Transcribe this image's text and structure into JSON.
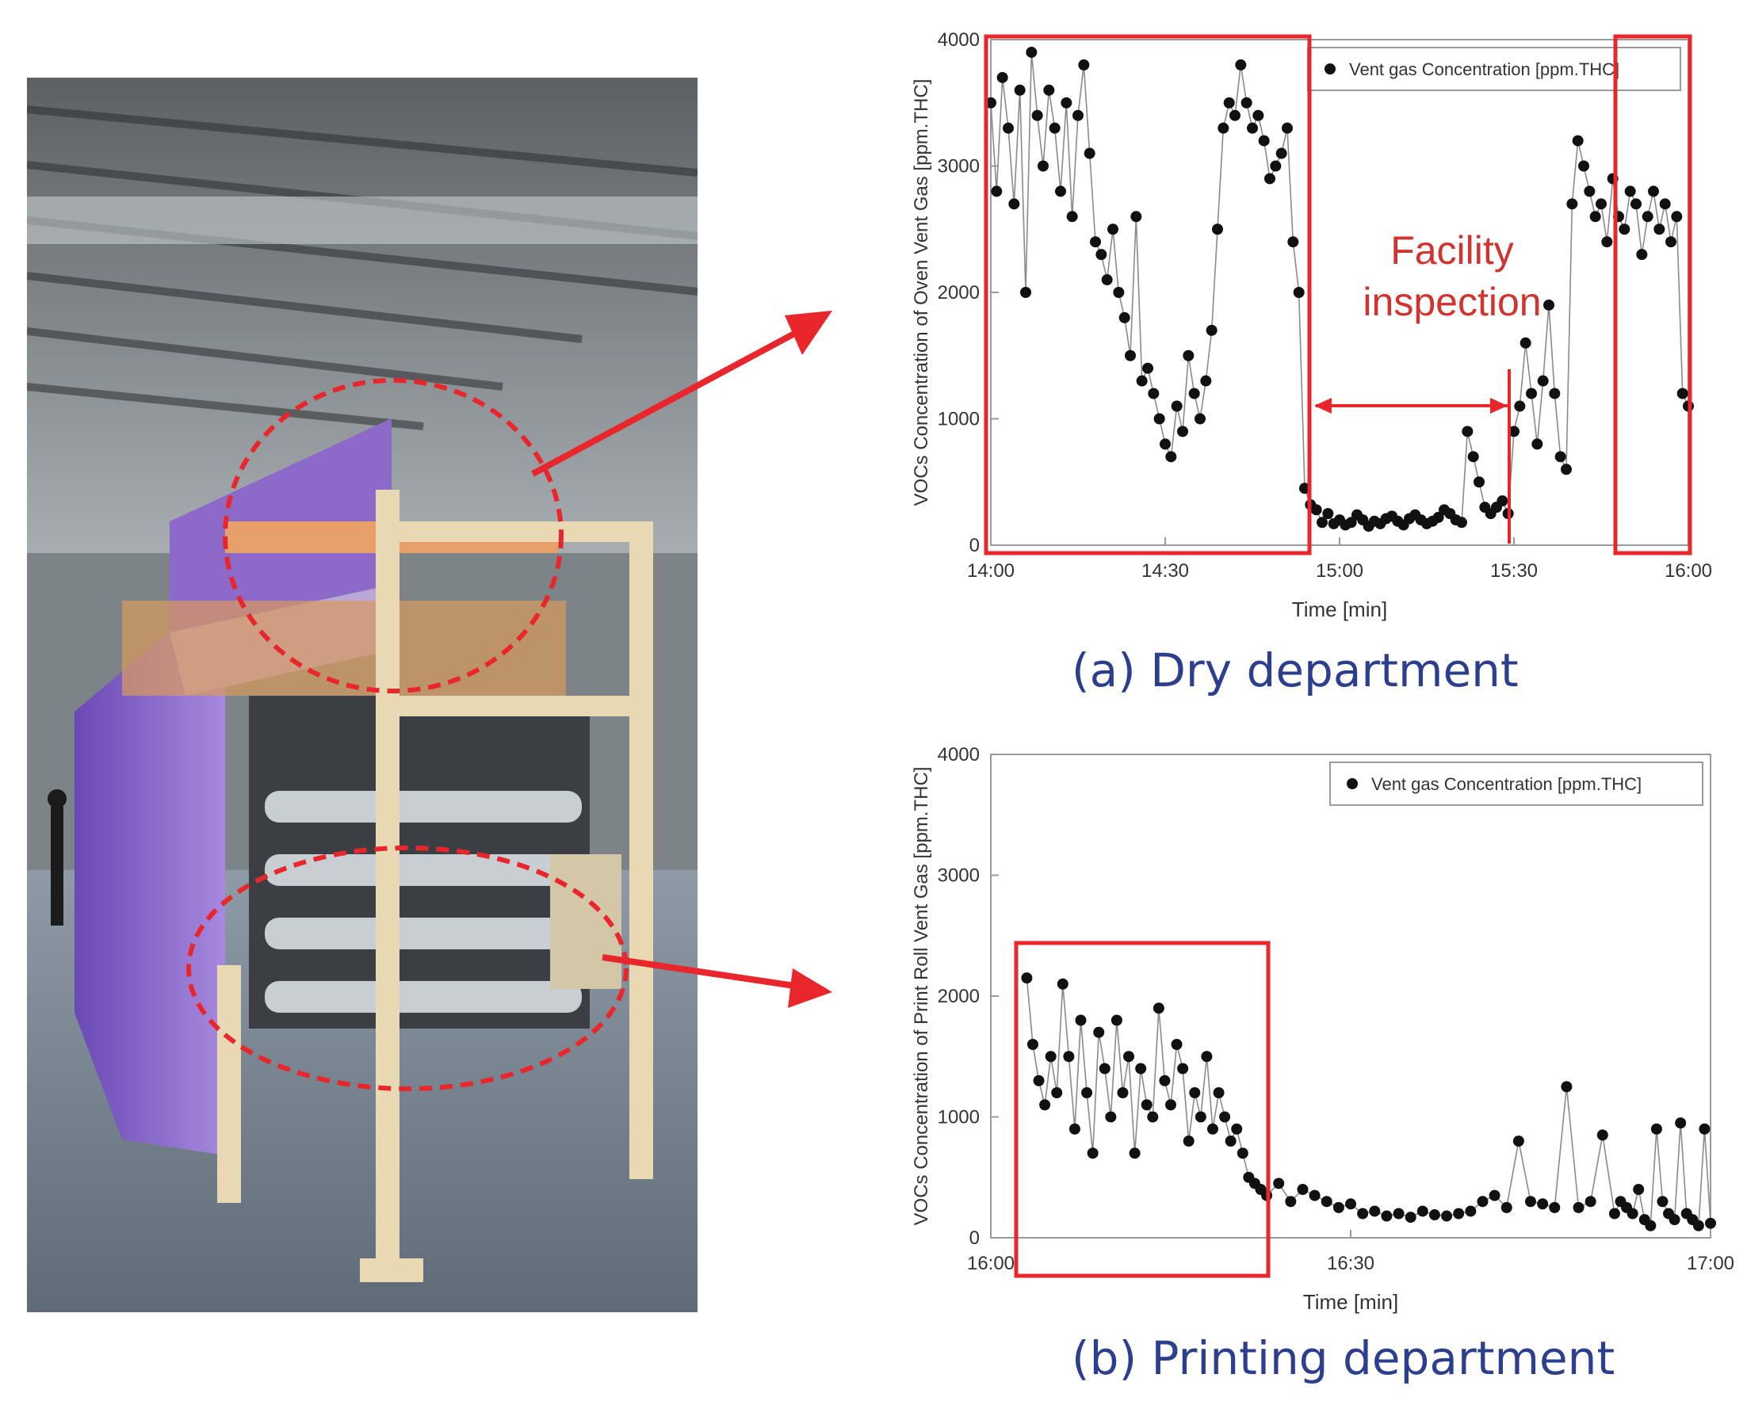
{
  "captions": {
    "a": "(a) Dry department",
    "b": "(b) Printing department"
  },
  "colors": {
    "highlight": "#e8262b",
    "caption": "#2c3f8f",
    "marker": "#111111",
    "machine_purple": "#8d6ac9",
    "frame_beige": "#e9d8b4"
  },
  "chart_data": [
    {
      "type": "scatter",
      "title": "",
      "xlabel": "Time [min]",
      "ylabel": "VOCs Concentration of Oven Vent Gas [ppm.THC]",
      "xlim_min": [
        0,
        120
      ],
      "ylim": [
        0,
        4000
      ],
      "x_ticks": [
        0,
        30,
        60,
        90,
        120
      ],
      "x_tick_labels": [
        "14:00",
        "14:30",
        "15:00",
        "15:30",
        "16:00"
      ],
      "y_ticks": [
        0,
        1000,
        2000,
        3000,
        4000
      ],
      "y_tick_labels": [
        "0",
        "1000",
        "2000",
        "3000",
        "4000"
      ],
      "legend": "top-right",
      "series": [
        {
          "name": "Vent gas Concentration [ppm.THC]",
          "x": [
            0,
            1,
            2,
            3,
            4,
            5,
            6,
            7,
            8,
            9,
            10,
            11,
            12,
            13,
            14,
            15,
            16,
            17,
            18,
            19,
            20,
            21,
            22,
            23,
            24,
            25,
            26,
            27,
            28,
            29,
            30,
            31,
            32,
            33,
            34,
            35,
            36,
            37,
            38,
            39,
            40,
            41,
            42,
            43,
            44,
            45,
            46,
            47,
            48,
            49,
            50,
            51,
            52,
            53,
            54,
            55,
            56,
            57,
            58,
            59,
            60,
            61,
            62,
            63,
            64,
            65,
            66,
            67,
            68,
            69,
            70,
            71,
            72,
            73,
            74,
            75,
            76,
            77,
            78,
            79,
            80,
            81,
            82,
            83,
            84,
            85,
            86,
            87,
            88,
            89,
            90,
            91,
            92,
            93,
            94,
            95,
            96,
            97,
            98,
            99,
            100,
            101,
            102,
            103,
            104,
            105,
            106,
            107,
            108,
            109,
            110,
            111,
            112,
            113,
            114,
            115,
            116,
            117,
            118,
            119,
            120
          ],
          "y": [
            3500,
            2800,
            3700,
            3300,
            2700,
            3600,
            2000,
            3900,
            3400,
            3000,
            3600,
            3300,
            2800,
            3500,
            2600,
            3400,
            3800,
            3100,
            2400,
            2300,
            2100,
            2500,
            2000,
            1800,
            1500,
            2600,
            1300,
            1400,
            1200,
            1000,
            800,
            700,
            1100,
            900,
            1500,
            1200,
            1000,
            1300,
            1700,
            2500,
            3300,
            3500,
            3400,
            3800,
            3500,
            3300,
            3400,
            3200,
            2900,
            3000,
            3100,
            3300,
            2400,
            2000,
            450,
            320,
            280,
            180,
            250,
            170,
            200,
            160,
            180,
            240,
            200,
            150,
            190,
            170,
            210,
            230,
            190,
            160,
            210,
            240,
            200,
            170,
            190,
            220,
            280,
            250,
            200,
            180,
            900,
            700,
            500,
            300,
            250,
            300,
            350,
            250,
            900,
            1100,
            1600,
            1200,
            800,
            1300,
            1900,
            1200,
            700,
            600,
            2700,
            3200,
            3000,
            2800,
            2600,
            2700,
            2400,
            2900,
            2600,
            2500,
            2800,
            2700,
            2300,
            2600,
            2800,
            2500,
            2700,
            2400,
            2600,
            1200,
            1100
          ]
        }
      ],
      "annotations": [
        "Facility",
        "inspection"
      ]
    },
    {
      "type": "scatter",
      "title": "",
      "xlabel": "Time [min]",
      "ylabel": "VOCs Concentration of Print Roll Vent Gas [ppm.THC]",
      "xlim_min": [
        0,
        60
      ],
      "ylim": [
        0,
        4000
      ],
      "x_ticks": [
        0,
        30,
        60
      ],
      "x_tick_labels": [
        "16:00",
        "16:30",
        "17:00"
      ],
      "y_ticks": [
        0,
        1000,
        2000,
        3000,
        4000
      ],
      "y_tick_labels": [
        "0",
        "1000",
        "2000",
        "3000",
        "4000"
      ],
      "legend": "top-right",
      "series": [
        {
          "name": "Vent gas Concentration [ppm.THC]",
          "x": [
            3,
            3.5,
            4,
            4.5,
            5,
            5.5,
            6,
            6.5,
            7,
            7.5,
            8,
            8.5,
            9,
            9.5,
            10,
            10.5,
            11,
            11.5,
            12,
            12.5,
            13,
            13.5,
            14,
            14.5,
            15,
            15.5,
            16,
            16.5,
            17,
            17.5,
            18,
            18.5,
            19,
            19.5,
            20,
            20.5,
            21,
            21.5,
            22,
            22.5,
            23,
            24,
            25,
            26,
            27,
            28,
            29,
            30,
            31,
            32,
            33,
            34,
            35,
            36,
            37,
            38,
            39,
            40,
            41,
            42,
            43,
            44,
            45,
            46,
            47,
            48,
            49,
            50,
            51,
            52,
            52.5,
            53,
            53.5,
            54,
            54.5,
            55,
            55.5,
            56,
            56.5,
            57,
            57.5,
            58,
            58.5,
            59,
            59.5,
            60
          ],
          "y": [
            2150,
            1600,
            1300,
            1100,
            1500,
            1200,
            2100,
            1500,
            900,
            1800,
            1200,
            700,
            1700,
            1400,
            1000,
            1800,
            1200,
            1500,
            700,
            1400,
            1100,
            1000,
            1900,
            1300,
            1100,
            1600,
            1400,
            800,
            1200,
            1000,
            1500,
            900,
            1200,
            1000,
            800,
            900,
            700,
            500,
            450,
            400,
            350,
            450,
            300,
            400,
            350,
            300,
            250,
            280,
            200,
            220,
            180,
            200,
            170,
            220,
            190,
            180,
            200,
            220,
            300,
            350,
            250,
            800,
            300,
            280,
            250,
            1250,
            250,
            300,
            850,
            200,
            300,
            250,
            200,
            400,
            150,
            100,
            900,
            300,
            200,
            150,
            950,
            200,
            150,
            100,
            900,
            120
          ]
        }
      ]
    }
  ]
}
